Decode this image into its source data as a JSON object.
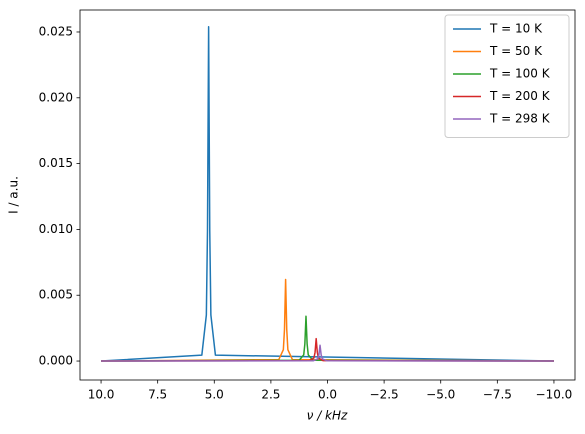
{
  "chart_data": {
    "type": "line",
    "xlabel": "ν / kHz",
    "ylabel": "I / a.u.",
    "xlim": [
      10.93,
      -10.93
    ],
    "ylim": [
      -0.00144,
      0.02667
    ],
    "xticks": [
      {
        "value": 10,
        "label": "10.0"
      },
      {
        "value": 7.5,
        "label": "7.5"
      },
      {
        "value": 5,
        "label": "5.0"
      },
      {
        "value": 2.5,
        "label": "2.5"
      },
      {
        "value": 0,
        "label": "0.0"
      },
      {
        "value": -2.5,
        "label": "−2.5"
      },
      {
        "value": -5,
        "label": "−5.0"
      },
      {
        "value": -7.5,
        "label": "−7.5"
      },
      {
        "value": -10,
        "label": "−10.0"
      }
    ],
    "yticks": [
      {
        "value": 0,
        "label": "0.000"
      },
      {
        "value": 0.005,
        "label": "0.005"
      },
      {
        "value": 0.01,
        "label": "0.010"
      },
      {
        "value": 0.015,
        "label": "0.015"
      },
      {
        "value": 0.02,
        "label": "0.020"
      },
      {
        "value": 0.025,
        "label": "0.025"
      }
    ],
    "legend": "upper right",
    "series": [
      {
        "name": "T = 10 K",
        "color": "#1f77b4",
        "x": [
          10,
          5.55,
          5.35,
          5.3,
          5.25,
          5.2,
          5.15,
          4.95,
          -10
        ],
        "values": [
          0,
          0.00045,
          0.0035,
          0.0099,
          0.0254,
          0.0099,
          0.0035,
          0.00045,
          0
        ]
      },
      {
        "name": "T = 50 K",
        "color": "#ff7f0e",
        "x": [
          10,
          2.15,
          1.95,
          1.9,
          1.85,
          1.8,
          1.75,
          1.55,
          -10
        ],
        "values": [
          0,
          0.00011,
          0.00086,
          0.0024,
          0.0062,
          0.0024,
          0.00086,
          0.00011,
          0
        ]
      },
      {
        "name": "T = 100 K",
        "color": "#2ca02c",
        "x": [
          10,
          1.25,
          1.05,
          1.0,
          0.95,
          0.9,
          0.85,
          0.65,
          -10
        ],
        "values": [
          0,
          6e-05,
          0.00047,
          0.0013,
          0.0034,
          0.0013,
          0.00047,
          6e-05,
          0
        ]
      },
      {
        "name": "T = 200 K",
        "color": "#d62728",
        "x": [
          10,
          0.8,
          0.6,
          0.55,
          0.5,
          0.45,
          0.4,
          0.2,
          -10
        ],
        "values": [
          0,
          3e-05,
          0.00023,
          0.00066,
          0.0017,
          0.00066,
          0.00023,
          3e-05,
          0
        ]
      },
      {
        "name": "T = 298 K",
        "color": "#9467bd",
        "x": [
          10,
          0.63,
          0.43,
          0.38,
          0.33,
          0.28,
          0.23,
          0.03,
          -10
        ],
        "values": [
          0,
          2e-05,
          0.00017,
          0.00047,
          0.0012,
          0.00047,
          0.00017,
          2e-05,
          0
        ]
      }
    ]
  }
}
